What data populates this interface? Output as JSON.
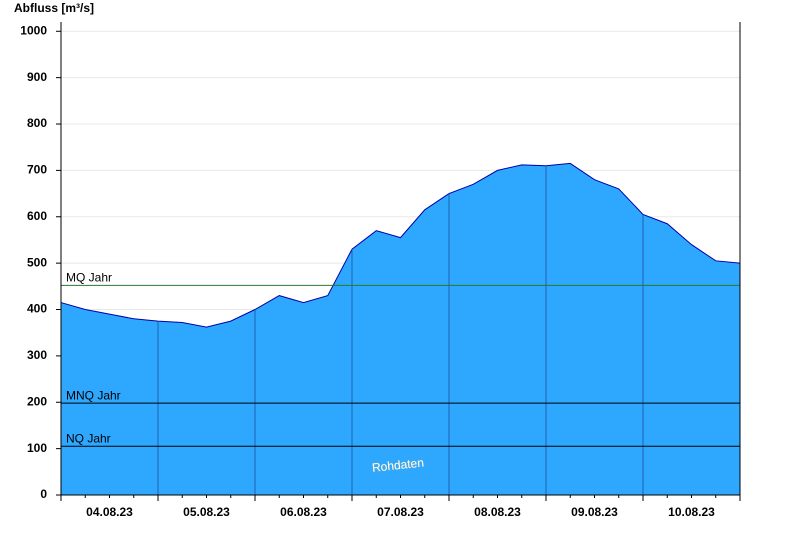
{
  "chart_data": {
    "type": "area",
    "y_label": "Abfluss [m³/s]",
    "categories": [
      null,
      null,
      "04.08.23",
      null,
      null,
      null,
      "05.08.23",
      null,
      null,
      null,
      "06.08.23",
      null,
      null,
      null,
      "07.08.23",
      null,
      null,
      null,
      "08.08.23",
      null,
      null,
      null,
      "09.08.23",
      null,
      null,
      null,
      "10.08.23",
      null,
      null
    ],
    "values": [
      415,
      400,
      390,
      380,
      375,
      372,
      362,
      375,
      400,
      430,
      415,
      430,
      530,
      570,
      555,
      615,
      650,
      670,
      700,
      712,
      710,
      715,
      680,
      660,
      605,
      585,
      540,
      505,
      500
    ],
    "color": "#2ea8ff",
    "line_color": "#0000aa",
    "ylim": [
      0,
      1020
    ],
    "yticks": [
      0,
      100,
      200,
      300,
      400,
      500,
      600,
      700,
      800,
      900,
      1000
    ],
    "reference_lines": [
      {
        "label": "MQ Jahr",
        "value": 452,
        "color": "#2a7a2a"
      },
      {
        "label": "MNQ Jahr",
        "value": 198,
        "color": "#000000"
      },
      {
        "label": "NQ Jahr",
        "value": 105,
        "color": "#000000"
      }
    ],
    "annotation": "Rohdaten",
    "grid": true
  }
}
